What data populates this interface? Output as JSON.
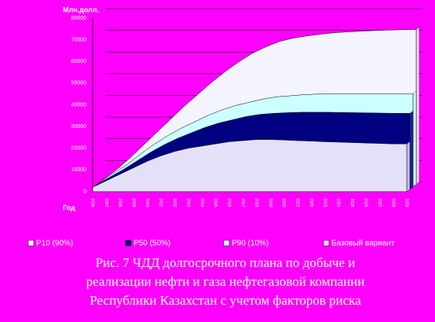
{
  "chart_data": {
    "type": "area",
    "y_label": "Млн.долл.",
    "x_label": "Год",
    "categories": [
      "2006",
      "2007",
      "2008",
      "2009",
      "2010",
      "2011",
      "2012",
      "2013",
      "2014",
      "2015",
      "2016",
      "2017",
      "2018",
      "2019",
      "2020",
      "2021",
      "2022",
      "2023",
      "2024",
      "2025",
      "2026",
      "2027",
      "2028",
      "2029"
    ],
    "series": [
      {
        "name": "P10 (90%)",
        "color": "#f4f4ff",
        "values": [
          2000,
          6500,
          12000,
          18000,
          24000,
          30000,
          36000,
          41500,
          47000,
          52000,
          56500,
          60500,
          63500,
          66000,
          67500,
          68500,
          69300,
          70000,
          70400,
          70700,
          71000,
          71200,
          71400,
          71500
        ]
      },
      {
        "name": "P50 (50%)",
        "color": "#000080",
        "values": [
          2000,
          5500,
          9000,
          13000,
          17000,
          20500,
          23500,
          26000,
          28500,
          30500,
          32000,
          33500,
          34500,
          35000,
          35300,
          35500,
          35500,
          35500,
          35400,
          35300,
          35200,
          35100,
          35000,
          35000
        ]
      },
      {
        "name": "P90 (10%)",
        "color": "#ccffff",
        "values": [
          2000,
          6000,
          10000,
          15000,
          19500,
          23500,
          27000,
          30000,
          33000,
          35500,
          37500,
          39000,
          40500,
          41500,
          42000,
          42500,
          42800,
          43000,
          43000,
          43000,
          43000,
          43000,
          43000,
          43000
        ]
      },
      {
        "name": "Базовый вариант",
        "color": "#e4e0f8",
        "values": [
          2000,
          5000,
          8000,
          11000,
          14000,
          16500,
          18500,
          20000,
          21000,
          22000,
          23000,
          23500,
          24000,
          24000,
          23800,
          23500,
          23300,
          23000,
          22800,
          22600,
          22400,
          22200,
          22000,
          22000
        ]
      }
    ],
    "ylim": [
      0,
      80000
    ],
    "yticks": [
      0,
      10000,
      20000,
      30000,
      40000,
      50000,
      60000,
      70000,
      80000
    ],
    "grid": true,
    "legend": "bottom",
    "caption_lines": [
      "Рис. 7 ЧДД долгосрочного плана по добыче и",
      "реализации нефти и газа нефтегазовой компании",
      "Республики Казахстан с учетом факторов риска"
    ]
  }
}
